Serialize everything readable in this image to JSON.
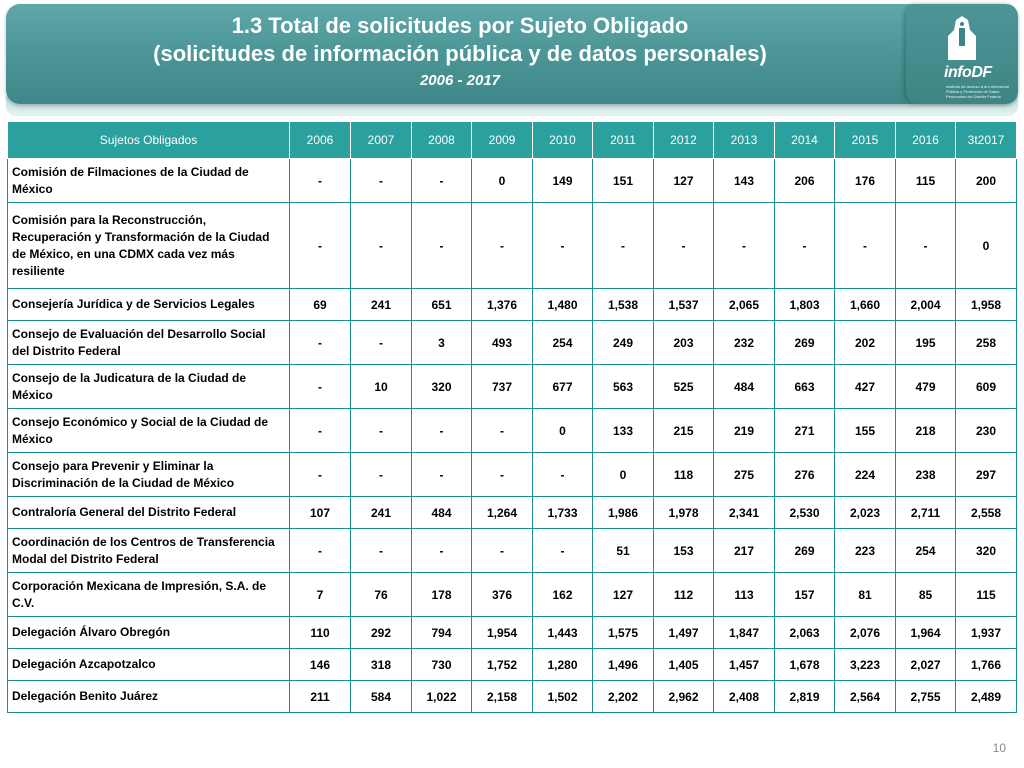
{
  "header": {
    "title_line1": "1.3 Total de solicitudes por Sujeto Obligado",
    "title_line2": "(solicitudes de información pública y de datos personales)",
    "subtitle": "2006 - 2017",
    "logo_text": "infoDF",
    "logo_small": "Instituto de Acceso a la Información Pública y Protección de Datos Personales del Distrito Federal"
  },
  "table": {
    "headers": [
      "Sujetos Obligados",
      "2006",
      "2007",
      "2008",
      "2009",
      "2010",
      "2011",
      "2012",
      "2013",
      "2014",
      "2015",
      "2016",
      "3t2017"
    ],
    "rows": [
      [
        "Comisión de Filmaciones de la Ciudad de México",
        "-",
        "-",
        "-",
        "0",
        "149",
        "151",
        "127",
        "143",
        "206",
        "176",
        "115",
        "200"
      ],
      [
        "Comisión para la Reconstrucción, Recuperación y Transformación de la Ciudad de México, en una CDMX cada vez más resiliente",
        "-",
        "-",
        "-",
        "-",
        "-",
        "-",
        "-",
        "-",
        "-",
        "-",
        "-",
        "0"
      ],
      [
        "Consejería Jurídica y de Servicios Legales",
        "69",
        "241",
        "651",
        "1,376",
        "1,480",
        "1,538",
        "1,537",
        "2,065",
        "1,803",
        "1,660",
        "2,004",
        "1,958"
      ],
      [
        "Consejo de Evaluación del Desarrollo Social del Distrito Federal",
        "-",
        "-",
        "3",
        "493",
        "254",
        "249",
        "203",
        "232",
        "269",
        "202",
        "195",
        "258"
      ],
      [
        "Consejo de la Judicatura de la Ciudad de México",
        "-",
        "10",
        "320",
        "737",
        "677",
        "563",
        "525",
        "484",
        "663",
        "427",
        "479",
        "609"
      ],
      [
        "Consejo Económico y Social de la Ciudad de México",
        "-",
        "-",
        "-",
        "-",
        "0",
        "133",
        "215",
        "219",
        "271",
        "155",
        "218",
        "230"
      ],
      [
        "Consejo para Prevenir y Eliminar la Discriminación de la Ciudad de México",
        "-",
        "-",
        "-",
        "-",
        "-",
        "0",
        "118",
        "275",
        "276",
        "224",
        "238",
        "297"
      ],
      [
        "Contraloría General del Distrito Federal",
        "107",
        "241",
        "484",
        "1,264",
        "1,733",
        "1,986",
        "1,978",
        "2,341",
        "2,530",
        "2,023",
        "2,711",
        "2,558"
      ],
      [
        "Coordinación de los Centros de Transferencia Modal del Distrito Federal",
        "-",
        "-",
        "-",
        "-",
        "-",
        "51",
        "153",
        "217",
        "269",
        "223",
        "254",
        "320"
      ],
      [
        "Corporación Mexicana de Impresión, S.A. de C.V.",
        "7",
        "76",
        "178",
        "376",
        "162",
        "127",
        "112",
        "113",
        "157",
        "81",
        "85",
        "115"
      ],
      [
        "Delegación Álvaro Obregón",
        "110",
        "292",
        "794",
        "1,954",
        "1,443",
        "1,575",
        "1,497",
        "1,847",
        "2,063",
        "2,076",
        "1,964",
        "1,937"
      ],
      [
        "Delegación Azcapotzalco",
        "146",
        "318",
        "730",
        "1,752",
        "1,280",
        "1,496",
        "1,405",
        "1,457",
        "1,678",
        "3,223",
        "2,027",
        "1,766"
      ],
      [
        "Delegación Benito Juárez",
        "211",
        "584",
        "1,022",
        "2,158",
        "1,502",
        "2,202",
        "2,962",
        "2,408",
        "2,819",
        "2,564",
        "2,755",
        "2,489"
      ]
    ]
  },
  "footer": {
    "page_number": "10"
  }
}
